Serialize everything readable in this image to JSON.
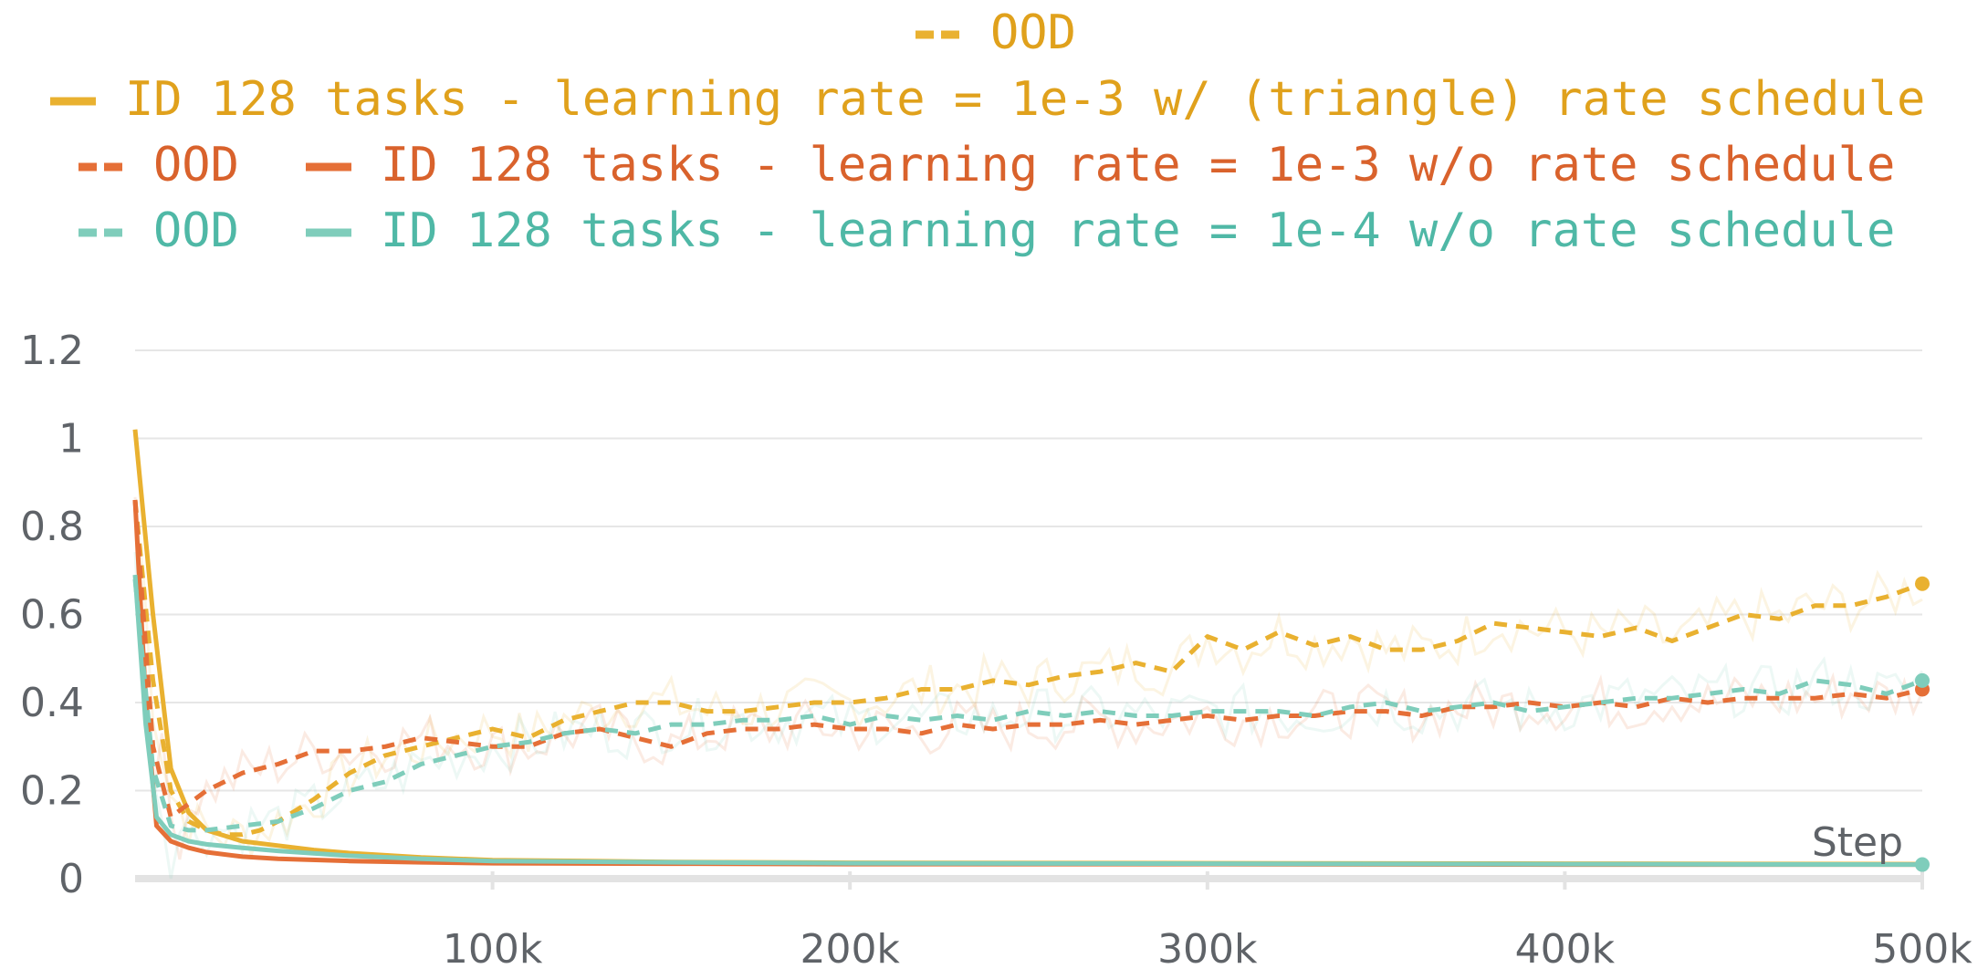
{
  "chart_data": {
    "type": "line",
    "xlabel": "Step",
    "ylabel": "",
    "xlim": [
      0,
      500000
    ],
    "ylim": [
      0,
      1.3
    ],
    "grid": true,
    "legend_position": "top-center",
    "x_ticks": [
      {
        "value": 100000,
        "label": "100k"
      },
      {
        "value": 200000,
        "label": "200k"
      },
      {
        "value": 300000,
        "label": "300k"
      },
      {
        "value": 400000,
        "label": "400k"
      },
      {
        "value": 500000,
        "label": "500k"
      }
    ],
    "y_ticks": [
      {
        "value": 0,
        "label": "0"
      },
      {
        "value": 0.2,
        "label": "0.2"
      },
      {
        "value": 0.4,
        "label": "0.4"
      },
      {
        "value": 0.6,
        "label": "0.6"
      },
      {
        "value": 0.8,
        "label": "0.8"
      },
      {
        "value": 1.0,
        "label": "1"
      },
      {
        "value": 1.2,
        "label": "1.2"
      }
    ],
    "series": [
      {
        "id": "ood-1e3-schedule",
        "name": "OOD",
        "color": "#e9b130",
        "dashed": true,
        "x": [
          0,
          5000,
          10000,
          15000,
          20000,
          25000,
          30000,
          35000,
          40000,
          50000,
          60000,
          70000,
          80000,
          90000,
          100000,
          110000,
          120000,
          130000,
          140000,
          150000,
          160000,
          170000,
          180000,
          190000,
          200000,
          210000,
          220000,
          230000,
          240000,
          250000,
          260000,
          270000,
          280000,
          290000,
          300000,
          310000,
          320000,
          330000,
          340000,
          350000,
          360000,
          370000,
          380000,
          390000,
          400000,
          410000,
          420000,
          430000,
          440000,
          450000,
          460000,
          470000,
          480000,
          490000,
          500000
        ],
        "y": [
          0.86,
          0.45,
          0.2,
          0.13,
          0.11,
          0.1,
          0.1,
          0.11,
          0.13,
          0.18,
          0.24,
          0.28,
          0.3,
          0.32,
          0.34,
          0.32,
          0.36,
          0.38,
          0.4,
          0.4,
          0.38,
          0.38,
          0.39,
          0.4,
          0.4,
          0.41,
          0.43,
          0.43,
          0.45,
          0.44,
          0.46,
          0.47,
          0.49,
          0.47,
          0.55,
          0.52,
          0.56,
          0.53,
          0.55,
          0.52,
          0.52,
          0.54,
          0.58,
          0.57,
          0.56,
          0.55,
          0.57,
          0.54,
          0.57,
          0.6,
          0.59,
          0.62,
          0.62,
          0.64,
          0.67
        ],
        "end_marker": true
      },
      {
        "id": "id-1e3-schedule",
        "name": "ID 128 tasks - learning rate = 1e-3 w/ (triangle) rate schedule",
        "color": "#e9b130",
        "dashed": false,
        "x": [
          0,
          5000,
          10000,
          15000,
          20000,
          30000,
          40000,
          50000,
          60000,
          70000,
          80000,
          100000,
          150000,
          200000,
          300000,
          400000,
          500000
        ],
        "y": [
          1.02,
          0.6,
          0.25,
          0.15,
          0.11,
          0.085,
          0.075,
          0.065,
          0.058,
          0.053,
          0.048,
          0.042,
          0.038,
          0.036,
          0.035,
          0.034,
          0.033
        ],
        "end_marker": false
      },
      {
        "id": "ood-1e3-no-schedule",
        "name": "OOD",
        "color": "#e56f37",
        "dashed": true,
        "x": [
          0,
          5000,
          10000,
          15000,
          20000,
          30000,
          40000,
          50000,
          60000,
          70000,
          80000,
          90000,
          100000,
          110000,
          120000,
          130000,
          140000,
          150000,
          160000,
          170000,
          180000,
          190000,
          200000,
          210000,
          220000,
          230000,
          240000,
          250000,
          260000,
          270000,
          280000,
          290000,
          300000,
          310000,
          320000,
          330000,
          340000,
          350000,
          360000,
          370000,
          380000,
          390000,
          400000,
          410000,
          420000,
          430000,
          440000,
          450000,
          460000,
          470000,
          480000,
          490000,
          500000
        ],
        "y": [
          0.86,
          0.3,
          0.14,
          0.17,
          0.2,
          0.24,
          0.26,
          0.29,
          0.29,
          0.3,
          0.32,
          0.31,
          0.3,
          0.3,
          0.33,
          0.34,
          0.32,
          0.3,
          0.33,
          0.34,
          0.34,
          0.35,
          0.34,
          0.34,
          0.33,
          0.35,
          0.34,
          0.35,
          0.35,
          0.36,
          0.35,
          0.36,
          0.37,
          0.36,
          0.37,
          0.37,
          0.38,
          0.38,
          0.37,
          0.39,
          0.39,
          0.4,
          0.39,
          0.4,
          0.39,
          0.41,
          0.4,
          0.41,
          0.41,
          0.41,
          0.42,
          0.41,
          0.43
        ],
        "end_marker": true
      },
      {
        "id": "id-1e3-no-schedule",
        "name": "ID 128 tasks - learning rate = 1e-3 w/o rate schedule",
        "color": "#e56f37",
        "dashed": false,
        "x": [
          0,
          3000,
          6000,
          10000,
          15000,
          20000,
          30000,
          40000,
          60000,
          80000,
          100000,
          150000,
          200000,
          300000,
          400000,
          500000
        ],
        "y": [
          0.86,
          0.4,
          0.12,
          0.085,
          0.07,
          0.06,
          0.05,
          0.045,
          0.04,
          0.037,
          0.035,
          0.034,
          0.033,
          0.033,
          0.032,
          0.032
        ],
        "end_marker": false
      },
      {
        "id": "ood-1e4-no-schedule",
        "name": "OOD",
        "color": "#7fcdbb",
        "dashed": true,
        "x": [
          0,
          5000,
          10000,
          15000,
          20000,
          30000,
          40000,
          50000,
          60000,
          70000,
          80000,
          90000,
          100000,
          110000,
          120000,
          130000,
          140000,
          150000,
          160000,
          170000,
          180000,
          190000,
          200000,
          210000,
          220000,
          230000,
          240000,
          250000,
          260000,
          270000,
          280000,
          290000,
          300000,
          310000,
          320000,
          330000,
          340000,
          350000,
          360000,
          370000,
          380000,
          390000,
          400000,
          410000,
          420000,
          430000,
          440000,
          450000,
          460000,
          470000,
          480000,
          490000,
          500000
        ],
        "y": [
          0.68,
          0.25,
          0.12,
          0.11,
          0.11,
          0.12,
          0.13,
          0.16,
          0.2,
          0.22,
          0.26,
          0.28,
          0.3,
          0.31,
          0.33,
          0.34,
          0.33,
          0.35,
          0.35,
          0.36,
          0.36,
          0.37,
          0.35,
          0.37,
          0.36,
          0.37,
          0.36,
          0.38,
          0.37,
          0.38,
          0.37,
          0.37,
          0.38,
          0.38,
          0.38,
          0.37,
          0.39,
          0.4,
          0.38,
          0.39,
          0.4,
          0.38,
          0.39,
          0.4,
          0.41,
          0.41,
          0.42,
          0.43,
          0.42,
          0.45,
          0.44,
          0.42,
          0.45
        ],
        "end_marker": true
      },
      {
        "id": "id-1e4-no-schedule",
        "name": "ID 128 tasks - learning rate = 1e-4 w/o rate schedule",
        "color": "#7fcdbb",
        "dashed": false,
        "x": [
          0,
          3000,
          6000,
          10000,
          15000,
          20000,
          30000,
          40000,
          60000,
          80000,
          100000,
          150000,
          200000,
          300000,
          400000,
          500000
        ],
        "y": [
          0.69,
          0.35,
          0.14,
          0.1,
          0.085,
          0.078,
          0.07,
          0.063,
          0.052,
          0.045,
          0.04,
          0.037,
          0.035,
          0.034,
          0.033,
          0.032
        ],
        "end_marker": true
      }
    ]
  }
}
